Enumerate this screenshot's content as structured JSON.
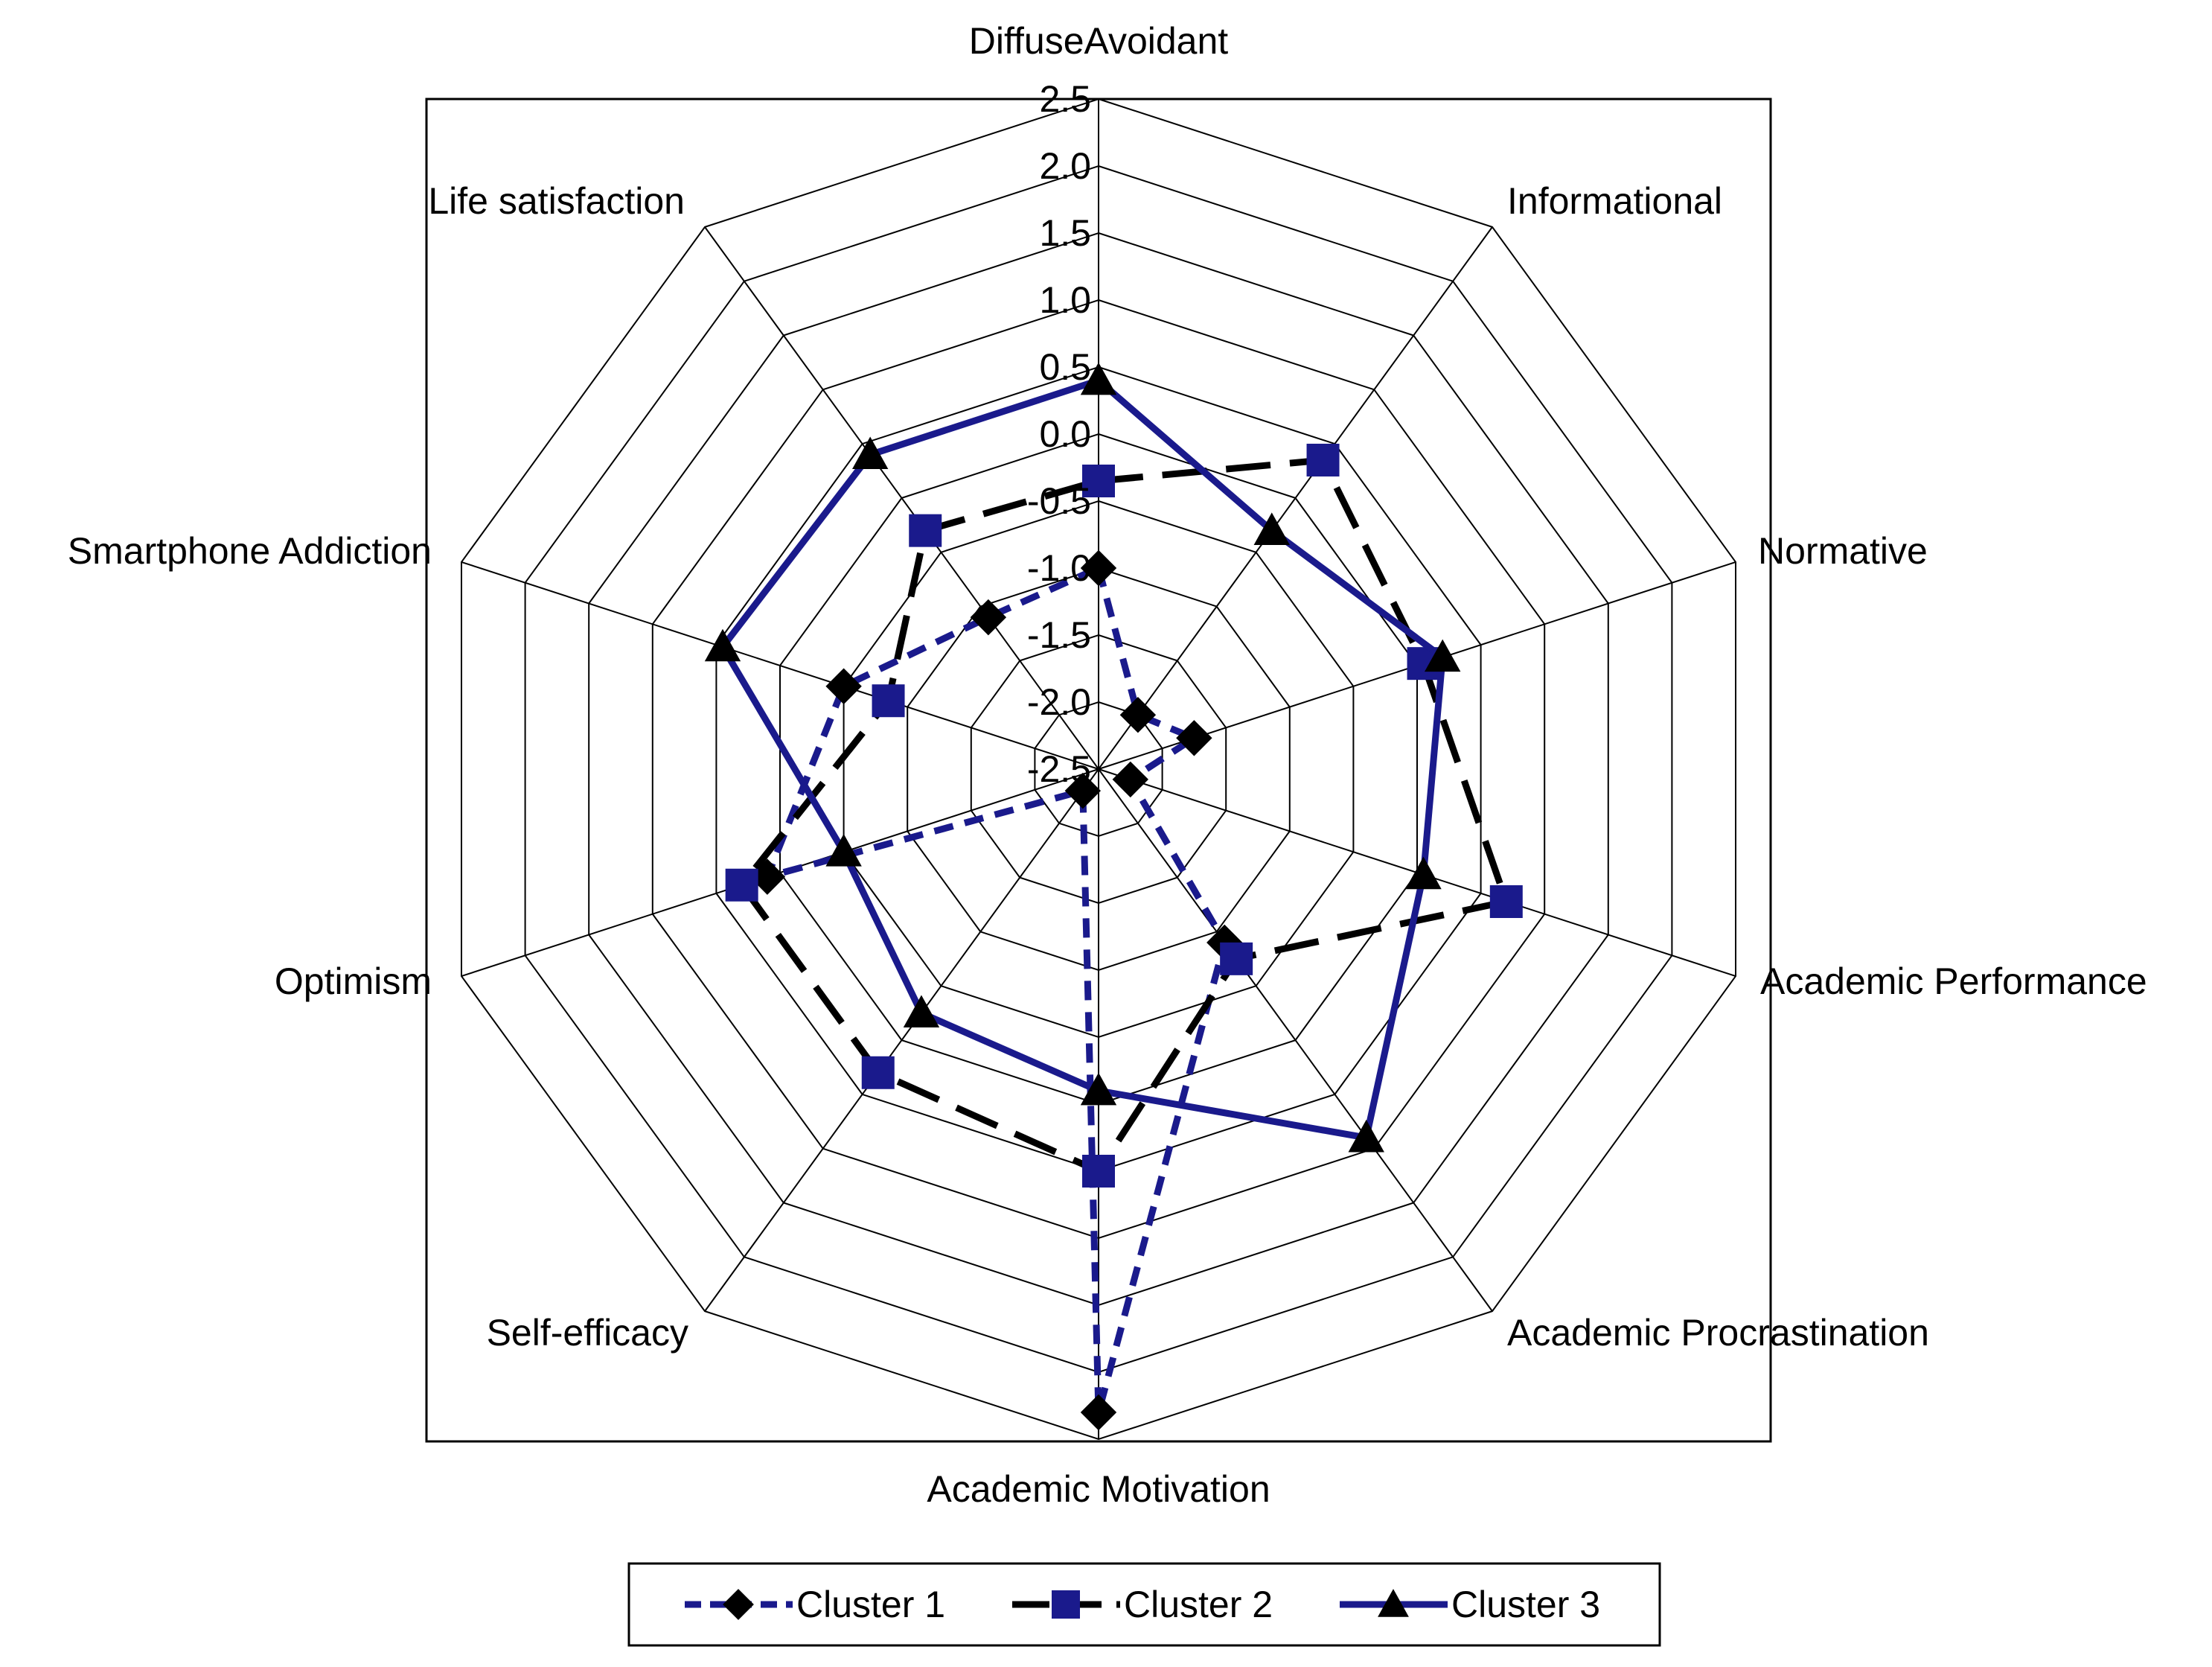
{
  "chart_data": {
    "type": "radar",
    "title": "",
    "axes": [
      "DiffuseAvoidant",
      "Informational",
      "Normative",
      "Academic Performance",
      "Academic Procrastination",
      "Academic Motivation",
      "Self-efficacy",
      "Optimism",
      "Smartphone Addiction",
      "Life satisfaction"
    ],
    "ticks": [
      "-2.5",
      "-2.0",
      "-1.5",
      "-1.0",
      "-0.5",
      "0.0",
      "0.5",
      "1.0",
      "1.5",
      "2.0",
      "2.5"
    ],
    "range": [
      -2.5,
      2.5
    ],
    "grid": true,
    "legend_position": "bottom",
    "series": [
      {
        "name": "Cluster 1",
        "marker": "diamond",
        "line": "dashed",
        "color": "#1a1a8c",
        "marker_color": "#000000",
        "values": [
          -1.0,
          -2.0,
          -1.75,
          -2.25,
          -0.9,
          2.3,
          -2.3,
          0.1,
          -0.5,
          -1.1
        ]
      },
      {
        "name": "Cluster 2",
        "marker": "square",
        "line": "long-dash",
        "color": "#000000",
        "marker_color": "#1a1a8c",
        "values": [
          -0.35,
          0.35,
          0.05,
          0.7,
          -0.75,
          0.5,
          0.3,
          0.3,
          -0.85,
          -0.3
        ]
      },
      {
        "name": "Cluster 3",
        "marker": "triangle",
        "line": "solid",
        "color": "#1a1a8c",
        "marker_color": "#000000",
        "values": [
          0.4,
          -0.3,
          0.2,
          0.05,
          0.9,
          -0.1,
          -0.25,
          -0.5,
          0.45,
          0.4
        ]
      }
    ]
  }
}
